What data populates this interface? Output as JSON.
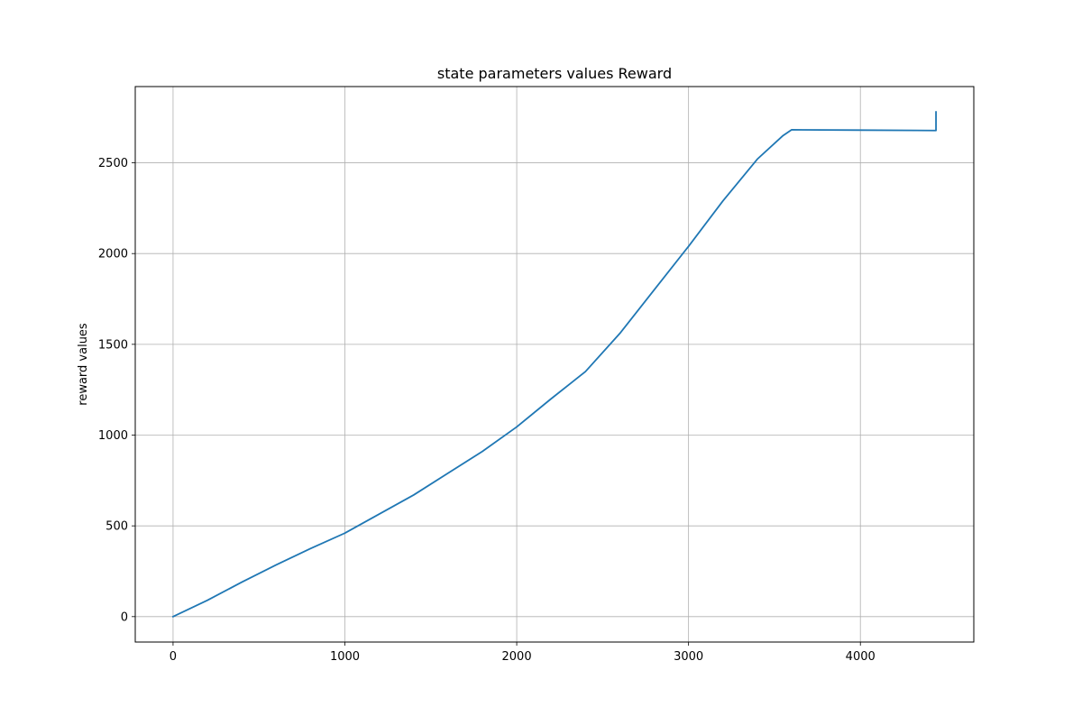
{
  "chart_data": {
    "type": "line",
    "title": "state parameters values Reward",
    "xlabel": "",
    "ylabel": "reward values",
    "xlim": [
      -220,
      4660
    ],
    "ylim": [
      -140,
      2920
    ],
    "xticks": [
      0,
      1000,
      2000,
      3000,
      4000
    ],
    "yticks": [
      0,
      500,
      1000,
      1500,
      2000,
      2500
    ],
    "grid": true,
    "series": [
      {
        "color": "#1f77b4",
        "x": [
          0,
          200,
          400,
          600,
          800,
          1000,
          1200,
          1400,
          1600,
          1800,
          2000,
          2200,
          2400,
          2600,
          2800,
          3000,
          3200,
          3400,
          3550,
          3600,
          4000,
          4430,
          4440,
          4440
        ],
        "y": [
          0,
          90,
          190,
          285,
          375,
          460,
          565,
          670,
          790,
          910,
          1045,
          1200,
          1350,
          1560,
          1800,
          2040,
          2290,
          2520,
          2650,
          2682,
          2680,
          2678,
          2678,
          2780
        ]
      }
    ]
  }
}
